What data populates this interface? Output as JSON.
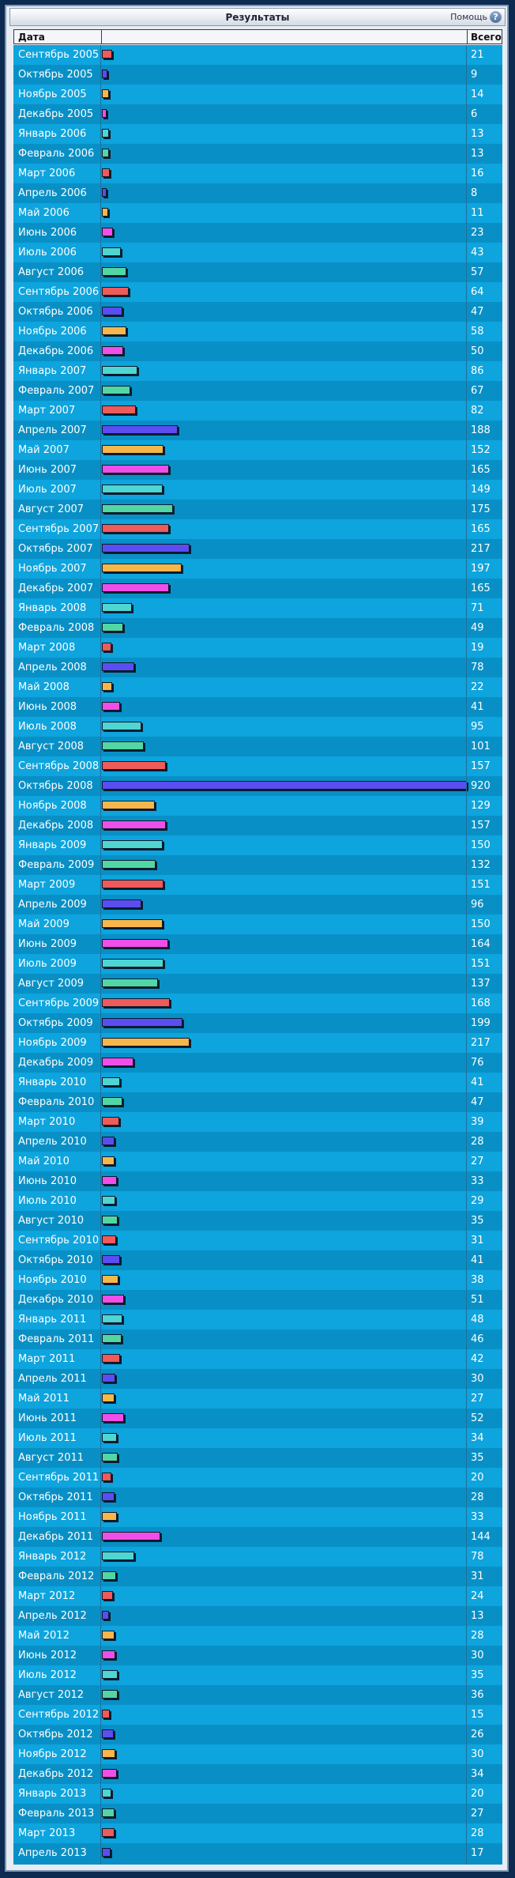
{
  "title": "Результаты",
  "help_label": "Помощь",
  "help_icon": "question-icon",
  "header": {
    "date": "Дата",
    "total": "Всего"
  },
  "colors": {
    "bars": [
      "#ef5a5a",
      "#5a4ef0",
      "#f7b64c",
      "#f04ee8",
      "#4fd6d2",
      "#52d6a4"
    ],
    "row_even": "#0ea4dd",
    "row_odd": "#0890c6"
  },
  "chart_data": {
    "type": "bar",
    "orientation": "horizontal",
    "title": "Результаты",
    "xlabel": "",
    "ylabel": "",
    "categories": [
      "Сентябрь 2005",
      "Октябрь 2005",
      "Ноябрь 2005",
      "Декабрь 2005",
      "Январь 2006",
      "Февраль 2006",
      "Март 2006",
      "Апрель 2006",
      "Май 2006",
      "Июнь 2006",
      "Июль 2006",
      "Август 2006",
      "Сентябрь 2006",
      "Октябрь 2006",
      "Ноябрь 2006",
      "Декабрь 2006",
      "Январь 2007",
      "Февраль 2007",
      "Март 2007",
      "Апрель 2007",
      "Май 2007",
      "Июнь 2007",
      "Июль 2007",
      "Август 2007",
      "Сентябрь 2007",
      "Октябрь 2007",
      "Ноябрь 2007",
      "Декабрь 2007",
      "Январь 2008",
      "Февраль 2008",
      "Март 2008",
      "Апрель 2008",
      "Май 2008",
      "Июнь 2008",
      "Июль 2008",
      "Август 2008",
      "Сентябрь 2008",
      "Октябрь 2008",
      "Ноябрь 2008",
      "Декабрь 2008",
      "Январь 2009",
      "Февраль 2009",
      "Март 2009",
      "Апрель 2009",
      "Май 2009",
      "Июнь 2009",
      "Июль 2009",
      "Август 2009",
      "Сентябрь 2009",
      "Октябрь 2009",
      "Ноябрь 2009",
      "Декабрь 2009",
      "Январь 2010",
      "Февраль 2010",
      "Март 2010",
      "Апрель 2010",
      "Май 2010",
      "Июнь 2010",
      "Июль 2010",
      "Август 2010",
      "Сентябрь 2010",
      "Октябрь 2010",
      "Ноябрь 2010",
      "Декабрь 2010",
      "Январь 2011",
      "Февраль 2011",
      "Март 2011",
      "Апрель 2011",
      "Май 2011",
      "Июнь 2011",
      "Июль 2011",
      "Август 2011",
      "Сентябрь 2011",
      "Октябрь 2011",
      "Ноябрь 2011",
      "Декабрь 2011",
      "Январь 2012",
      "Февраль 2012",
      "Март 2012",
      "Апрель 2012",
      "Май 2012",
      "Июнь 2012",
      "Июль 2012",
      "Август 2012",
      "Сентябрь 2012",
      "Октябрь 2012",
      "Ноябрь 2012",
      "Декабрь 2012",
      "Январь 2013",
      "Февраль 2013",
      "Март 2013",
      "Апрель 2013"
    ],
    "values": [
      21,
      9,
      14,
      6,
      13,
      13,
      16,
      8,
      11,
      23,
      43,
      57,
      64,
      47,
      58,
      50,
      86,
      67,
      82,
      188,
      152,
      165,
      149,
      175,
      165,
      217,
      197,
      165,
      71,
      49,
      19,
      78,
      22,
      41,
      95,
      101,
      157,
      920,
      129,
      157,
      150,
      132,
      151,
      96,
      150,
      164,
      151,
      137,
      168,
      199,
      217,
      76,
      41,
      47,
      39,
      28,
      27,
      33,
      29,
      35,
      31,
      41,
      38,
      51,
      48,
      46,
      42,
      30,
      27,
      52,
      34,
      35,
      20,
      28,
      33,
      144,
      78,
      31,
      24,
      13,
      28,
      30,
      35,
      36,
      15,
      26,
      30,
      34,
      20,
      27,
      28,
      17
    ],
    "xlim": [
      0,
      920
    ],
    "grid": false,
    "legend": "none"
  }
}
